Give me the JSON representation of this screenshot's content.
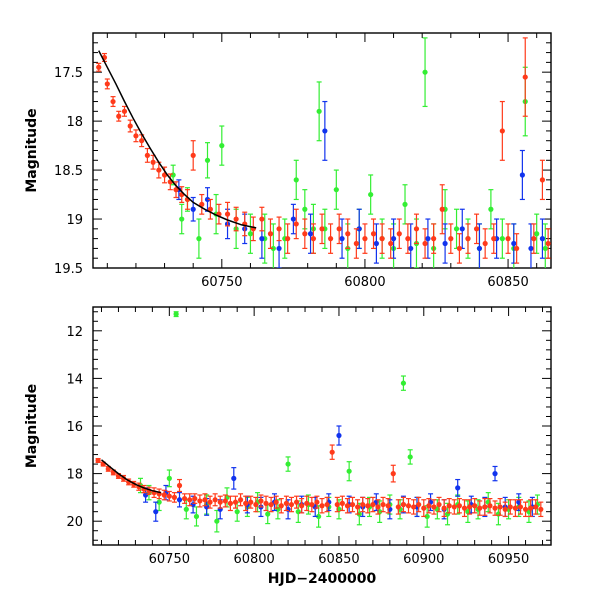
{
  "chart_data": [
    {
      "type": "scatter",
      "panel": "top",
      "title": "",
      "xlabel": "",
      "ylabel": "Magnitude",
      "xlim": [
        60705,
        60865
      ],
      "ylim": [
        19.5,
        17.1
      ],
      "y_inverted": true,
      "xticks": [
        60750,
        60800,
        60850
      ],
      "xtick_labels": [
        "60750",
        "60800",
        "60850"
      ],
      "yticks": [
        17.5,
        18,
        18.5,
        19,
        19.5
      ],
      "ytick_labels": [
        "17.5",
        "18",
        "18.5",
        "19",
        "19.5"
      ],
      "grid": false,
      "series": [
        {
          "name": "green",
          "color": "#33ee33",
          "x": [
            60733,
            60736,
            60738,
            60742,
            60745,
            60748,
            60750,
            60755,
            60760,
            60765,
            60768,
            60772,
            60776,
            60779,
            60782,
            60784,
            60786,
            60790,
            60794,
            60798,
            60802,
            60806,
            60810,
            60814,
            60818,
            60821,
            60824,
            60828,
            60832,
            60836,
            60840,
            60844,
            60848,
            60852,
            60856,
            60860,
            60863
          ],
          "y": [
            18.55,
            19.0,
            18.8,
            19.2,
            18.4,
            18.95,
            18.25,
            19.1,
            19.15,
            19.2,
            19.3,
            19.2,
            18.6,
            18.9,
            19.1,
            17.9,
            19.1,
            18.7,
            19.3,
            19.1,
            18.75,
            19.2,
            19.3,
            18.85,
            19.25,
            17.5,
            19.3,
            18.9,
            19.1,
            19.2,
            19.3,
            18.9,
            19.2,
            19.3,
            17.8,
            19.15,
            19.3
          ],
          "err": [
            0.1,
            0.15,
            0.12,
            0.2,
            0.18,
            0.2,
            0.2,
            0.2,
            0.2,
            0.25,
            0.25,
            0.2,
            0.2,
            0.2,
            0.25,
            0.3,
            0.2,
            0.2,
            0.25,
            0.2,
            0.2,
            0.2,
            0.25,
            0.2,
            0.25,
            0.35,
            0.25,
            0.2,
            0.2,
            0.2,
            0.25,
            0.2,
            0.2,
            0.25,
            0.35,
            0.2,
            0.25
          ]
        },
        {
          "name": "blue",
          "color": "#1133ee",
          "x": [
            60735,
            60740,
            60745,
            60752,
            60758,
            60764,
            60770,
            60775,
            60781,
            60786,
            60792,
            60798,
            60804,
            60810,
            60816,
            60822,
            60828,
            60834,
            60840,
            60846,
            60852,
            60855,
            60858,
            60862
          ],
          "y": [
            18.7,
            18.9,
            18.8,
            19.05,
            19.1,
            19.2,
            19.3,
            19.0,
            19.15,
            18.1,
            19.2,
            19.1,
            19.25,
            19.2,
            19.3,
            19.2,
            19.25,
            19.1,
            19.3,
            19.2,
            19.25,
            18.55,
            19.3,
            19.2
          ],
          "err": [
            0.1,
            0.12,
            0.12,
            0.15,
            0.15,
            0.2,
            0.2,
            0.15,
            0.2,
            0.3,
            0.2,
            0.2,
            0.2,
            0.2,
            0.25,
            0.2,
            0.2,
            0.2,
            0.25,
            0.2,
            0.2,
            0.25,
            0.25,
            0.2
          ]
        },
        {
          "name": "red",
          "color": "#ff3a1a",
          "x": [
            60707,
            60709,
            60710,
            60712,
            60714,
            60716,
            60718,
            60720,
            60722,
            60724,
            60726,
            60728,
            60730,
            60732,
            60734,
            60736,
            60738,
            60740,
            60743,
            60746,
            60749,
            60752,
            60755,
            60758,
            60761,
            60764,
            60767,
            60770,
            60773,
            60776,
            60779,
            60782,
            60785,
            60788,
            60791,
            60794,
            60797,
            60800,
            60803,
            60806,
            60809,
            60812,
            60815,
            60818,
            60821,
            60824,
            60827,
            60830,
            60833,
            60836,
            60839,
            60842,
            60845,
            60848,
            60850,
            60853,
            60856,
            60859,
            60862,
            60864
          ],
          "y": [
            17.45,
            17.35,
            17.62,
            17.8,
            17.95,
            17.9,
            18.05,
            18.15,
            18.2,
            18.35,
            18.42,
            18.5,
            18.55,
            18.62,
            18.7,
            18.75,
            18.8,
            18.35,
            18.85,
            18.9,
            18.95,
            18.95,
            19.0,
            19.05,
            19.1,
            19.0,
            19.15,
            19.1,
            19.2,
            19.05,
            19.15,
            19.2,
            19.1,
            19.2,
            19.1,
            19.15,
            19.25,
            19.2,
            19.15,
            19.2,
            19.25,
            19.15,
            19.2,
            19.1,
            19.25,
            19.2,
            18.9,
            19.2,
            19.3,
            19.2,
            19.1,
            19.25,
            19.2,
            18.1,
            19.2,
            19.3,
            17.55,
            19.2,
            18.6,
            19.25
          ],
          "err": [
            0.04,
            0.04,
            0.05,
            0.05,
            0.05,
            0.05,
            0.06,
            0.06,
            0.06,
            0.07,
            0.07,
            0.08,
            0.08,
            0.08,
            0.08,
            0.08,
            0.1,
            0.15,
            0.1,
            0.1,
            0.1,
            0.12,
            0.12,
            0.12,
            0.12,
            0.12,
            0.15,
            0.12,
            0.15,
            0.15,
            0.15,
            0.15,
            0.15,
            0.15,
            0.15,
            0.15,
            0.15,
            0.15,
            0.15,
            0.15,
            0.15,
            0.15,
            0.15,
            0.15,
            0.15,
            0.15,
            0.25,
            0.15,
            0.15,
            0.15,
            0.15,
            0.15,
            0.15,
            0.3,
            0.15,
            0.15,
            0.4,
            0.15,
            0.2,
            0.15
          ]
        },
        {
          "name": "fit",
          "type": "line",
          "color": "#000000",
          "x": [
            60707,
            60710,
            60713,
            60716,
            60719,
            60722,
            60725,
            60728,
            60731,
            60734,
            60737,
            60740,
            60744,
            60748,
            60752,
            60757,
            60762
          ],
          "y": [
            17.28,
            17.45,
            17.62,
            17.8,
            17.97,
            18.13,
            18.28,
            18.42,
            18.55,
            18.66,
            18.75,
            18.83,
            18.9,
            18.96,
            19.01,
            19.06,
            19.09
          ]
        }
      ]
    },
    {
      "type": "scatter",
      "panel": "bottom",
      "title": "",
      "xlabel": "HJD−2400000",
      "ylabel": "Magnitude",
      "xlim": [
        60705,
        60975
      ],
      "ylim": [
        21,
        11
      ],
      "y_inverted": true,
      "xticks": [
        60750,
        60800,
        60850,
        60900,
        60950
      ],
      "xtick_labels": [
        "60750",
        "60800",
        "60850",
        "60900",
        "60950"
      ],
      "yticks": [
        12,
        14,
        16,
        18,
        20
      ],
      "ytick_labels": [
        "12",
        "14",
        "16",
        "18",
        "20"
      ],
      "grid": false,
      "series": [
        {
          "name": "green",
          "color": "#33ee33",
          "x": [
            60733,
            60738,
            60744,
            60750,
            60754,
            60760,
            60766,
            60772,
            60778,
            60784,
            60790,
            60796,
            60802,
            60808,
            60814,
            60820,
            60826,
            60832,
            60838,
            60844,
            60850,
            60856,
            60862,
            60868,
            60874,
            60880,
            60886,
            60888,
            60892,
            60896,
            60902,
            60908,
            60914,
            60920,
            60926,
            60932,
            60938,
            60944,
            60950,
            60956,
            60962,
            60967
          ],
          "y": [
            18.5,
            18.8,
            19.2,
            18.2,
            11.3,
            19.5,
            19.8,
            19.3,
            20.0,
            19.0,
            19.6,
            19.4,
            19.2,
            19.7,
            19.5,
            17.6,
            19.6,
            19.3,
            19.8,
            19.4,
            19.5,
            17.9,
            19.7,
            19.4,
            19.6,
            19.3,
            19.5,
            14.2,
            17.3,
            19.4,
            19.8,
            19.5,
            19.7,
            19.3,
            19.6,
            19.5,
            19.2,
            19.7,
            19.5,
            19.4,
            19.6,
            19.3
          ],
          "err": [
            0.3,
            0.3,
            0.35,
            0.35,
            0.1,
            0.4,
            0.4,
            0.4,
            0.45,
            0.4,
            0.4,
            0.4,
            0.4,
            0.4,
            0.4,
            0.3,
            0.45,
            0.4,
            0.45,
            0.4,
            0.4,
            0.4,
            0.45,
            0.4,
            0.45,
            0.4,
            0.4,
            0.3,
            0.3,
            0.4,
            0.45,
            0.4,
            0.45,
            0.4,
            0.45,
            0.4,
            0.4,
            0.45,
            0.4,
            0.4,
            0.45,
            0.4
          ]
        },
        {
          "name": "blue",
          "color": "#1133ee",
          "x": [
            60736,
            60742,
            60748,
            60756,
            60764,
            60772,
            60780,
            60788,
            60796,
            60804,
            60812,
            60820,
            60828,
            60836,
            60844,
            60850,
            60856,
            60864,
            60872,
            60880,
            60888,
            60896,
            60904,
            60912,
            60920,
            60928,
            60936,
            60942,
            60948,
            60956,
            60964
          ],
          "y": [
            18.9,
            19.6,
            18.8,
            19.1,
            19.3,
            19.4,
            19.5,
            18.2,
            19.3,
            19.4,
            19.2,
            19.5,
            19.3,
            19.4,
            19.2,
            16.4,
            19.3,
            19.4,
            19.2,
            19.5,
            19.3,
            19.4,
            19.2,
            19.5,
            18.6,
            19.3,
            19.4,
            18.0,
            19.4,
            19.2,
            19.4
          ],
          "err": [
            0.3,
            0.4,
            0.3,
            0.3,
            0.35,
            0.35,
            0.4,
            0.45,
            0.35,
            0.4,
            0.35,
            0.4,
            0.35,
            0.4,
            0.35,
            0.4,
            0.35,
            0.4,
            0.35,
            0.4,
            0.35,
            0.4,
            0.35,
            0.4,
            0.35,
            0.35,
            0.4,
            0.3,
            0.4,
            0.35,
            0.4
          ]
        },
        {
          "name": "red",
          "color": "#ff3a1a",
          "x": [
            60708,
            60711,
            60714,
            60717,
            60720,
            60723,
            60726,
            60729,
            60732,
            60735,
            60738,
            60741,
            60744,
            60747,
            60750,
            60753,
            60756,
            60759,
            60762,
            60765,
            60768,
            60771,
            60774,
            60777,
            60780,
            60783,
            60786,
            60789,
            60792,
            60795,
            60798,
            60801,
            60804,
            60807,
            60810,
            60813,
            60816,
            60819,
            60822,
            60825,
            60828,
            60831,
            60834,
            60837,
            60840,
            60843,
            60846,
            60849,
            60852,
            60855,
            60858,
            60861,
            60864,
            60867,
            60870,
            60873,
            60876,
            60879,
            60882,
            60885,
            60888,
            60891,
            60894,
            60897,
            60900,
            60903,
            60906,
            60909,
            60912,
            60915,
            60918,
            60921,
            60924,
            60927,
            60930,
            60933,
            60936,
            60939,
            60942,
            60945,
            60948,
            60951,
            60954,
            60957,
            60960,
            60963,
            60966,
            60969
          ],
          "y": [
            17.45,
            17.6,
            17.8,
            17.95,
            18.1,
            18.2,
            18.35,
            18.45,
            18.55,
            18.65,
            18.72,
            18.8,
            18.85,
            18.9,
            18.95,
            19.0,
            18.5,
            19.05,
            19.1,
            19.05,
            19.15,
            19.1,
            19.2,
            19.1,
            19.2,
            19.15,
            19.25,
            19.2,
            19.1,
            19.25,
            19.2,
            19.3,
            19.15,
            19.25,
            19.3,
            19.2,
            19.35,
            19.25,
            19.3,
            19.2,
            19.35,
            19.25,
            19.3,
            19.2,
            19.35,
            19.3,
            17.1,
            19.3,
            19.25,
            19.35,
            19.3,
            19.4,
            19.3,
            19.35,
            19.3,
            19.4,
            19.3,
            19.35,
            18.0,
            19.4,
            19.3,
            19.35,
            19.4,
            19.3,
            19.45,
            19.35,
            19.4,
            19.3,
            19.45,
            19.35,
            19.4,
            19.35,
            19.45,
            19.4,
            19.35,
            19.45,
            19.4,
            19.35,
            19.45,
            19.4,
            19.5,
            19.4,
            19.45,
            19.4,
            19.5,
            19.45,
            19.4,
            19.5
          ],
          "err": [
            0.08,
            0.08,
            0.1,
            0.1,
            0.1,
            0.12,
            0.12,
            0.12,
            0.15,
            0.15,
            0.15,
            0.2,
            0.2,
            0.2,
            0.2,
            0.2,
            0.25,
            0.2,
            0.25,
            0.2,
            0.25,
            0.25,
            0.25,
            0.25,
            0.25,
            0.25,
            0.3,
            0.25,
            0.25,
            0.3,
            0.25,
            0.3,
            0.25,
            0.3,
            0.3,
            0.25,
            0.3,
            0.3,
            0.3,
            0.25,
            0.3,
            0.3,
            0.3,
            0.25,
            0.3,
            0.3,
            0.3,
            0.3,
            0.3,
            0.3,
            0.3,
            0.3,
            0.3,
            0.3,
            0.3,
            0.3,
            0.3,
            0.3,
            0.35,
            0.3,
            0.3,
            0.3,
            0.3,
            0.3,
            0.35,
            0.3,
            0.3,
            0.3,
            0.35,
            0.3,
            0.3,
            0.3,
            0.35,
            0.3,
            0.3,
            0.3,
            0.35,
            0.3,
            0.3,
            0.35,
            0.3,
            0.3,
            0.35,
            0.3,
            0.3,
            0.35,
            0.3,
            0.3
          ]
        },
        {
          "name": "fit",
          "type": "line",
          "color": "#000000",
          "x": [
            60710,
            60715,
            60720,
            60725,
            60730,
            60735,
            60740,
            60745
          ],
          "y": [
            17.42,
            17.72,
            18.0,
            18.25,
            18.45,
            18.6,
            18.72,
            18.8
          ]
        }
      ]
    }
  ]
}
